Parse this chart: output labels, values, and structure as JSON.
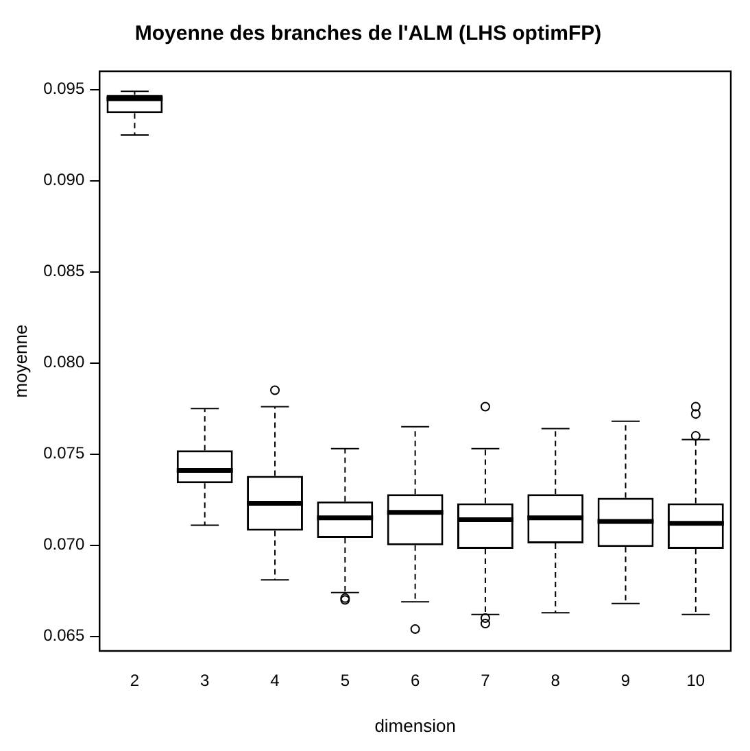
{
  "chart_data": {
    "type": "box",
    "title": "Moyenne des branches de l'ALM (LHS optimFP)",
    "xlabel": "dimension",
    "ylabel": "moyenne",
    "categories": [
      "2",
      "3",
      "4",
      "5",
      "6",
      "7",
      "8",
      "9",
      "10"
    ],
    "color": "#000000",
    "boxes": [
      {
        "low": 0.0925,
        "q1": 0.0937,
        "median": 0.0945,
        "q3": 0.0947,
        "high": 0.0949
      },
      {
        "low": 0.0711,
        "q1": 0.0734,
        "median": 0.0741,
        "q3": 0.0752,
        "high": 0.0775
      },
      {
        "low": 0.0681,
        "q1": 0.0708,
        "median": 0.0723,
        "q3": 0.0738,
        "high": 0.0776,
        "outliers": [
          0.0785
        ]
      },
      {
        "low": 0.0674,
        "q1": 0.0704,
        "median": 0.0715,
        "q3": 0.0724,
        "high": 0.0753,
        "outliers": [
          0.0671,
          0.067
        ]
      },
      {
        "low": 0.0669,
        "q1": 0.07,
        "median": 0.0718,
        "q3": 0.0728,
        "high": 0.0765,
        "outliers": [
          0.0654
        ]
      },
      {
        "low": 0.0662,
        "q1": 0.0698,
        "median": 0.0714,
        "q3": 0.0723,
        "high": 0.0753,
        "outliers": [
          0.0776,
          0.066,
          0.0657
        ]
      },
      {
        "low": 0.0663,
        "q1": 0.0701,
        "median": 0.0715,
        "q3": 0.0728,
        "high": 0.0764
      },
      {
        "low": 0.0668,
        "q1": 0.0699,
        "median": 0.0713,
        "q3": 0.0726,
        "high": 0.0768
      },
      {
        "low": 0.0662,
        "q1": 0.0698,
        "median": 0.0712,
        "q3": 0.0723,
        "high": 0.0758,
        "outliers": [
          0.0776,
          0.0772,
          0.076
        ]
      }
    ],
    "ylim": [
      0.0642,
      0.096
    ],
    "yticks": [
      {
        "value": 0.065,
        "label": "0.065"
      },
      {
        "value": 0.07,
        "label": "0.070"
      },
      {
        "value": 0.075,
        "label": "0.075"
      },
      {
        "value": 0.08,
        "label": "0.080"
      },
      {
        "value": 0.085,
        "label": "0.085"
      },
      {
        "value": 0.09,
        "label": "0.090"
      },
      {
        "value": 0.095,
        "label": "0.095"
      }
    ],
    "grid": false,
    "legend": false,
    "marker": "circle"
  }
}
